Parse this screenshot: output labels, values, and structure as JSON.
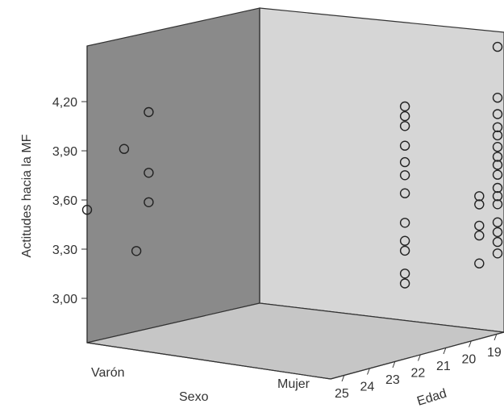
{
  "chart_data": {
    "type": "scatter",
    "subtype": "3d-scatter",
    "title": "",
    "ylabel": "Actitudes hacia la MF",
    "xlabel": "Sexo",
    "zlabel": "Edad",
    "y_ticks": [
      "3,00",
      "3,30",
      "3,60",
      "3,90",
      "4,20"
    ],
    "ylim": [
      2.8,
      4.55
    ],
    "sexo_categories": [
      "Varón",
      "Mujer"
    ],
    "edad_ticks": [
      "25",
      "24",
      "23",
      "22",
      "21",
      "20",
      "19"
    ],
    "colors": {
      "left_wall": "#8a8a8a",
      "back_wall": "#d6d6d6",
      "floor": "#c6c6c6",
      "edge": "#333333",
      "marker_stroke": "#222222"
    },
    "points": [
      {
        "sexo": "Varón",
        "edad": 25.0,
        "y": 3.54
      },
      {
        "sexo": "Varón",
        "edad": 23.5,
        "y": 3.86
      },
      {
        "sexo": "Varón",
        "edad": 22.5,
        "y": 4.05
      },
      {
        "sexo": "Varón",
        "edad": 22.5,
        "y": 3.68
      },
      {
        "sexo": "Varón",
        "edad": 22.5,
        "y": 3.5
      },
      {
        "sexo": "Varón",
        "edad": 23.0,
        "y": 3.22
      },
      {
        "sexo": "Mujer",
        "edad": 22.0,
        "y": 4.27
      },
      {
        "sexo": "Mujer",
        "edad": 22.0,
        "y": 4.21
      },
      {
        "sexo": "Mujer",
        "edad": 22.0,
        "y": 4.15
      },
      {
        "sexo": "Mujer",
        "edad": 22.0,
        "y": 4.03
      },
      {
        "sexo": "Mujer",
        "edad": 22.0,
        "y": 3.93
      },
      {
        "sexo": "Mujer",
        "edad": 22.0,
        "y": 3.85
      },
      {
        "sexo": "Mujer",
        "edad": 22.0,
        "y": 3.74
      },
      {
        "sexo": "Mujer",
        "edad": 22.0,
        "y": 3.56
      },
      {
        "sexo": "Mujer",
        "edad": 22.0,
        "y": 3.45
      },
      {
        "sexo": "Mujer",
        "edad": 22.0,
        "y": 3.39
      },
      {
        "sexo": "Mujer",
        "edad": 22.0,
        "y": 3.25
      },
      {
        "sexo": "Mujer",
        "edad": 22.0,
        "y": 3.19
      },
      {
        "sexo": "Mujer",
        "edad": 19.0,
        "y": 3.6
      },
      {
        "sexo": "Mujer",
        "edad": 19.0,
        "y": 3.55
      },
      {
        "sexo": "Mujer",
        "edad": 19.0,
        "y": 3.42
      },
      {
        "sexo": "Mujer",
        "edad": 19.0,
        "y": 3.36
      },
      {
        "sexo": "Mujer",
        "edad": 19.0,
        "y": 3.19
      },
      {
        "sexo": "Mujer",
        "edad": 18.0,
        "y": 4.47
      },
      {
        "sexo": "Mujer",
        "edad": 18.0,
        "y": 4.16
      },
      {
        "sexo": "Mujer",
        "edad": 18.0,
        "y": 4.06
      },
      {
        "sexo": "Mujer",
        "edad": 18.0,
        "y": 3.98
      },
      {
        "sexo": "Mujer",
        "edad": 18.0,
        "y": 3.93
      },
      {
        "sexo": "Mujer",
        "edad": 18.0,
        "y": 3.86
      },
      {
        "sexo": "Mujer",
        "edad": 18.0,
        "y": 3.8
      },
      {
        "sexo": "Mujer",
        "edad": 18.0,
        "y": 3.75
      },
      {
        "sexo": "Mujer",
        "edad": 18.0,
        "y": 3.69
      },
      {
        "sexo": "Mujer",
        "edad": 18.0,
        "y": 3.61
      },
      {
        "sexo": "Mujer",
        "edad": 18.0,
        "y": 3.56
      },
      {
        "sexo": "Mujer",
        "edad": 18.0,
        "y": 3.51
      },
      {
        "sexo": "Mujer",
        "edad": 18.0,
        "y": 3.4
      },
      {
        "sexo": "Mujer",
        "edad": 18.0,
        "y": 3.34
      },
      {
        "sexo": "Mujer",
        "edad": 18.0,
        "y": 3.28
      },
      {
        "sexo": "Mujer",
        "edad": 18.0,
        "y": 3.21
      }
    ]
  }
}
